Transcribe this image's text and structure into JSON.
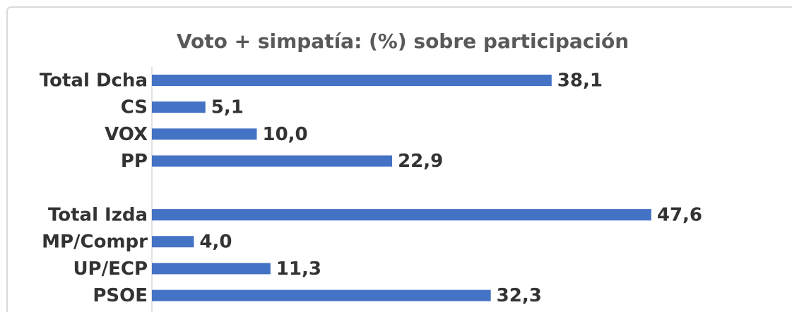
{
  "chart_data": {
    "type": "hbar",
    "title": "Voto + simpatía: (%) sobre participación",
    "categories": [
      "Total Dcha",
      "CS",
      "VOX",
      "PP",
      null,
      "Total Izda",
      "MP/Compr",
      "UP/ECP",
      "PSOE"
    ],
    "values": [
      38.1,
      5.1,
      10.0,
      22.9,
      null,
      47.6,
      4.0,
      11.3,
      32.3
    ],
    "value_labels": [
      "38,1",
      "5,1",
      "10,0",
      "22,9",
      null,
      "47,6",
      "4,0",
      "11,3",
      "32,3"
    ],
    "color": "#4472c4",
    "xlim": [
      0,
      60
    ]
  }
}
